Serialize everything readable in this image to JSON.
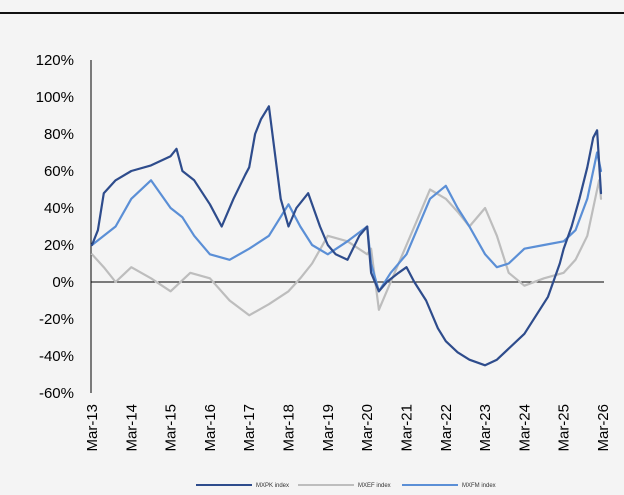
{
  "chart_data": {
    "type": "line",
    "title": "",
    "xlabel": "",
    "ylabel": "",
    "ylim": [
      -60,
      120
    ],
    "y_ticks": [
      120,
      100,
      80,
      60,
      40,
      20,
      0,
      -20,
      -40,
      -60
    ],
    "y_tick_labels": [
      "120%",
      "100%",
      "80%",
      "60%",
      "40%",
      "20%",
      "0%",
      "-20%",
      "-40%",
      "-60%"
    ],
    "x_tick_labels": [
      "Mar-13",
      "Mar-14",
      "Mar-15",
      "Mar-16",
      "Mar-17",
      "Mar-18",
      "Mar-19",
      "Mar-20",
      "Mar-21",
      "Mar-22",
      "Mar-23",
      "Mar-24",
      "Mar-25",
      "Mar-26"
    ],
    "x_range": [
      0,
      13
    ],
    "legend_position": "bottom",
    "grid": false,
    "series": [
      {
        "name": "MXPK index",
        "color": "#2e4c8c",
        "x": [
          0,
          0.15,
          0.3,
          0.6,
          1.0,
          1.5,
          2.0,
          2.15,
          2.3,
          2.6,
          3.0,
          3.3,
          3.6,
          3.9,
          4.0,
          4.15,
          4.3,
          4.5,
          4.8,
          5.0,
          5.2,
          5.5,
          5.8,
          6.0,
          6.2,
          6.5,
          6.8,
          7.0,
          7.1,
          7.3,
          7.5,
          7.8,
          8.0,
          8.2,
          8.5,
          8.8,
          9.0,
          9.3,
          9.6,
          10.0,
          10.3,
          10.6,
          11.0,
          11.3,
          11.6,
          11.9,
          12.0,
          12.2,
          12.4,
          12.6,
          12.75,
          12.85,
          12.95
        ],
        "y": [
          20,
          28,
          48,
          55,
          60,
          63,
          68,
          72,
          60,
          55,
          42,
          30,
          45,
          58,
          62,
          80,
          88,
          95,
          45,
          30,
          40,
          48,
          30,
          20,
          15,
          12,
          25,
          30,
          5,
          -5,
          0,
          5,
          8,
          0,
          -10,
          -25,
          -32,
          -38,
          -42,
          -45,
          -42,
          -36,
          -28,
          -18,
          -8,
          10,
          18,
          30,
          45,
          62,
          78,
          82,
          48
        ]
      },
      {
        "name": "MXEF index",
        "color": "#bdbdbd",
        "x": [
          0,
          0.3,
          0.6,
          1.0,
          1.5,
          2.0,
          2.5,
          3.0,
          3.5,
          4.0,
          4.5,
          5.0,
          5.3,
          5.6,
          6.0,
          6.5,
          7.0,
          7.1,
          7.3,
          7.6,
          8.0,
          8.3,
          8.6,
          9.0,
          9.3,
          9.6,
          10.0,
          10.3,
          10.6,
          11.0,
          11.5,
          12.0,
          12.3,
          12.6,
          12.9,
          12.95
        ],
        "y": [
          15,
          8,
          0,
          8,
          2,
          -5,
          5,
          2,
          -10,
          -18,
          -12,
          -5,
          2,
          10,
          25,
          22,
          15,
          18,
          -15,
          0,
          20,
          35,
          50,
          45,
          38,
          30,
          40,
          25,
          5,
          -2,
          2,
          5,
          12,
          25,
          55,
          45
        ]
      },
      {
        "name": "MXFM index",
        "color": "#5b8fd6",
        "x": [
          0,
          0.3,
          0.6,
          1.0,
          1.5,
          2.0,
          2.3,
          2.6,
          3.0,
          3.5,
          4.0,
          4.5,
          5.0,
          5.3,
          5.6,
          6.0,
          6.5,
          7.0,
          7.1,
          7.3,
          7.6,
          8.0,
          8.3,
          8.6,
          9.0,
          9.3,
          9.6,
          10.0,
          10.3,
          10.6,
          11.0,
          11.5,
          12.0,
          12.3,
          12.6,
          12.85,
          12.95
        ],
        "y": [
          20,
          25,
          30,
          45,
          55,
          40,
          35,
          25,
          15,
          12,
          18,
          25,
          42,
          30,
          20,
          15,
          22,
          30,
          10,
          -5,
          5,
          15,
          30,
          45,
          52,
          40,
          30,
          15,
          8,
          10,
          18,
          20,
          22,
          28,
          45,
          70,
          60
        ]
      }
    ]
  }
}
